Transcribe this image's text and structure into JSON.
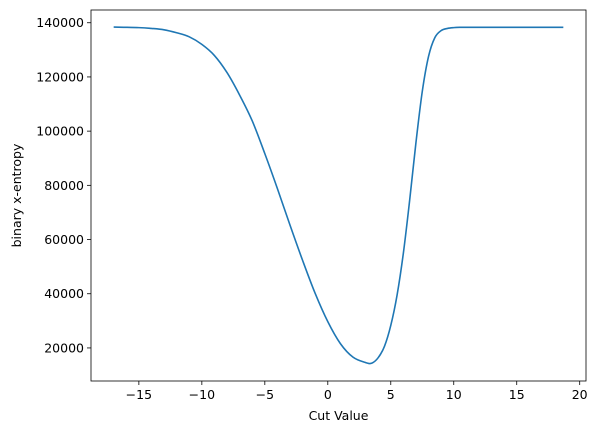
{
  "chart_data": {
    "type": "line",
    "title": "",
    "xlabel": "Cut Value",
    "ylabel": "binary x-entropy",
    "xlim": [
      -18.8,
      20.5
    ],
    "ylim": [
      7800,
      144700
    ],
    "xticks": [
      -15,
      -10,
      -5,
      0,
      5,
      10,
      15,
      20
    ],
    "xtick_labels": [
      "−15",
      "−10",
      "−5",
      "0",
      "5",
      "10",
      "15",
      "20"
    ],
    "yticks": [
      20000,
      40000,
      60000,
      80000,
      100000,
      120000,
      140000
    ],
    "ytick_labels": [
      "20000",
      "40000",
      "60000",
      "80000",
      "100000",
      "120000",
      "140000"
    ],
    "grid": false,
    "colors": {
      "line": "#1f77b4",
      "axes": "#000000",
      "background": "#ffffff"
    },
    "series": [
      {
        "x": [
          -17,
          -15,
          -14,
          -13,
          -12,
          -11,
          -10,
          -9,
          -8,
          -7,
          -6,
          -5,
          -4,
          -3,
          -2,
          -1,
          0,
          1,
          2,
          3,
          3.5,
          4,
          4.5,
          5,
          5.5,
          6,
          6.5,
          7,
          7.5,
          8,
          8.5,
          9,
          9.5,
          10,
          10.5,
          11,
          12,
          15,
          18.7
        ],
        "y": [
          138400,
          138200,
          137900,
          137400,
          136300,
          134800,
          132000,
          127900,
          121600,
          113300,
          103800,
          91700,
          78800,
          65300,
          52300,
          40100,
          29700,
          21600,
          16600,
          14600,
          14400,
          16400,
          20600,
          28300,
          39500,
          55000,
          74500,
          95800,
          114600,
          127600,
          134500,
          137100,
          137900,
          138200,
          138300,
          138300,
          138300,
          138300,
          138300
        ]
      }
    ]
  }
}
